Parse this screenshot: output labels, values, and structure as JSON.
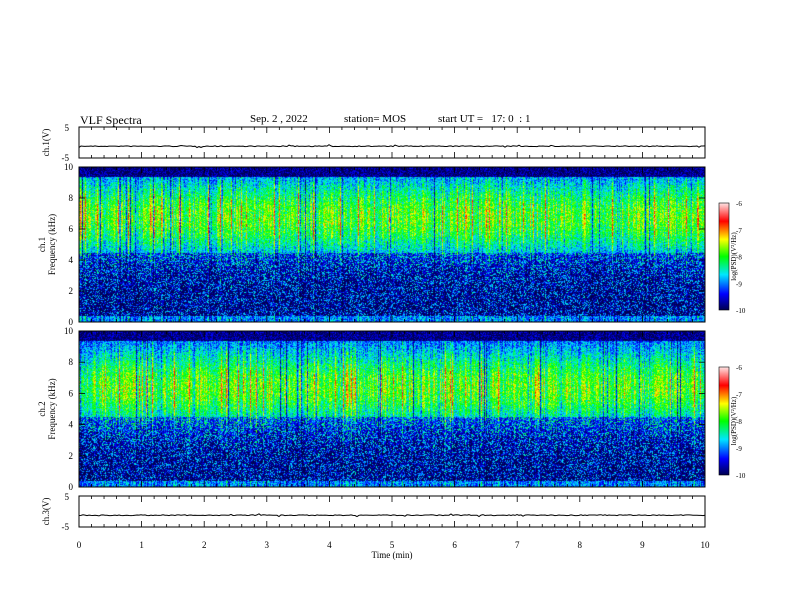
{
  "header": {
    "title": "VLF Spectra",
    "date": "Sep. 2 , 2022",
    "station": "station= MOS",
    "start_ut": "start UT =   17: 0  : 1"
  },
  "chart_data": [
    {
      "type": "line",
      "name": "waveform-ch1",
      "ylabel": "ch.1(V)",
      "ylim": [
        -5,
        5
      ],
      "yticks": [
        "5",
        "-5"
      ],
      "xlim": [
        0,
        10
      ],
      "baseline": -1.2
    },
    {
      "type": "heatmap",
      "name": "spectrogram-ch1",
      "ylabel": "ch.1\nFrequency (kHz)",
      "ylim": [
        0,
        10
      ],
      "yticks": [
        "0",
        "2",
        "4",
        "6",
        "8",
        "10"
      ],
      "xlim": [
        0,
        10
      ],
      "colorbar": {
        "label": "log(PSD)(V²/Hz)",
        "range": [
          -10,
          -6
        ],
        "ticks": [
          "-6",
          "-7",
          "-8",
          "-9",
          "-10"
        ]
      }
    },
    {
      "type": "heatmap",
      "name": "spectrogram-ch2",
      "ylabel": "ch.2\nFrequency (kHz)",
      "ylim": [
        0,
        10
      ],
      "yticks": [
        "0",
        "2",
        "4",
        "6",
        "8",
        "10"
      ],
      "xlim": [
        0,
        10
      ],
      "colorbar": {
        "label": "log(PSD)(V²/Hz)",
        "range": [
          -10,
          -6
        ],
        "ticks": [
          "-6",
          "-7",
          "-8",
          "-9",
          "-10"
        ]
      }
    },
    {
      "type": "line",
      "name": "waveform-ch3",
      "ylabel": "ch.3(V)",
      "ylim": [
        -5,
        5
      ],
      "yticks": [
        "5",
        "-5"
      ],
      "xlim": [
        0,
        10
      ],
      "baseline": -1.2
    }
  ],
  "xaxis": {
    "label": "Time (min)",
    "ticks": [
      "0",
      "1",
      "2",
      "3",
      "4",
      "5",
      "6",
      "7",
      "8",
      "9",
      "10"
    ]
  },
  "colors": {
    "scale": [
      "#000066",
      "#0000ff",
      "#00ffff",
      "#00ff00",
      "#ffff00",
      "#ff0000",
      "#ffffff"
    ]
  }
}
